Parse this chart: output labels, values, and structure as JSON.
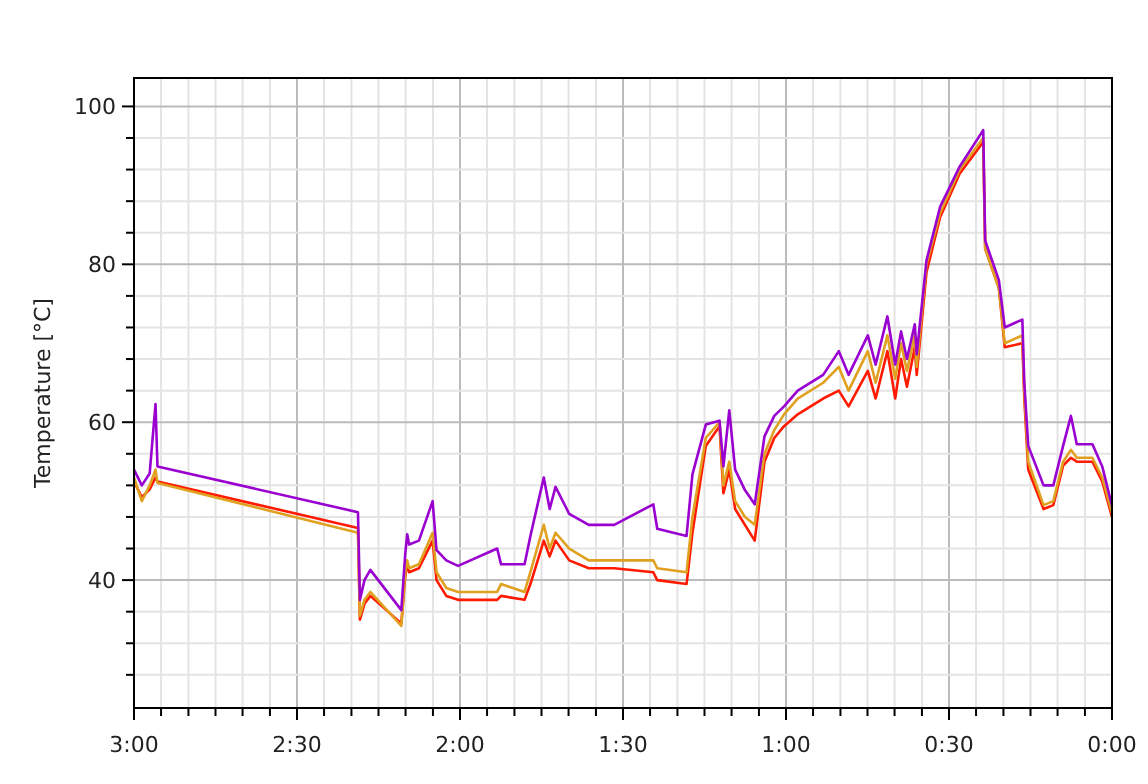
{
  "chart_data": {
    "type": "line",
    "ylabel": "Temperature [°C]",
    "grid": true,
    "line_style": "solid",
    "marker": "none",
    "xlim": [
      3,
      0
    ],
    "ylim": [
      23.8,
      103.6
    ],
    "xticks": [
      {
        "value": 3,
        "label": "3:00"
      },
      {
        "value": 2.917,
        "label": null
      },
      {
        "value": 2.833,
        "label": null
      },
      {
        "value": 2.75,
        "label": null
      },
      {
        "value": 2.667,
        "label": null
      },
      {
        "value": 2.583,
        "label": null
      },
      {
        "value": 2.5,
        "label": "2:30"
      },
      {
        "value": 2.417,
        "label": null
      },
      {
        "value": 2.333,
        "label": null
      },
      {
        "value": 2.25,
        "label": null
      },
      {
        "value": 2.167,
        "label": null
      },
      {
        "value": 2.083,
        "label": null
      },
      {
        "value": 2,
        "label": "2:00"
      },
      {
        "value": 1.917,
        "label": null
      },
      {
        "value": 1.833,
        "label": null
      },
      {
        "value": 1.75,
        "label": null
      },
      {
        "value": 1.667,
        "label": null
      },
      {
        "value": 1.583,
        "label": null
      },
      {
        "value": 1.5,
        "label": "1:30"
      },
      {
        "value": 1.417,
        "label": null
      },
      {
        "value": 1.333,
        "label": null
      },
      {
        "value": 1.25,
        "label": null
      },
      {
        "value": 1.167,
        "label": null
      },
      {
        "value": 1.083,
        "label": null
      },
      {
        "value": 1,
        "label": "1:00"
      },
      {
        "value": 0.917,
        "label": null
      },
      {
        "value": 0.833,
        "label": null
      },
      {
        "value": 0.75,
        "label": null
      },
      {
        "value": 0.667,
        "label": null
      },
      {
        "value": 0.583,
        "label": null
      },
      {
        "value": 0.5,
        "label": "0:30"
      },
      {
        "value": 0.417,
        "label": null
      },
      {
        "value": 0.333,
        "label": null
      },
      {
        "value": 0.25,
        "label": null
      },
      {
        "value": 0.167,
        "label": null
      },
      {
        "value": 0.083,
        "label": null
      },
      {
        "value": 0,
        "label": "0:00"
      }
    ],
    "yticks": [
      {
        "value": 28,
        "label": null
      },
      {
        "value": 32,
        "label": null
      },
      {
        "value": 36,
        "label": null
      },
      40,
      {
        "value": 44,
        "label": null
      },
      {
        "value": 48,
        "label": null
      },
      {
        "value": 52,
        "label": null
      },
      {
        "value": 56,
        "label": null
      },
      60,
      {
        "value": 64,
        "label": null
      },
      {
        "value": 68,
        "label": null
      },
      {
        "value": 72,
        "label": null
      },
      {
        "value": 76,
        "label": null
      },
      80,
      {
        "value": 84,
        "label": null
      },
      {
        "value": 88,
        "label": null
      },
      {
        "value": 92,
        "label": null
      },
      {
        "value": 96,
        "label": null
      },
      100
    ],
    "x": [
      3,
      2.976,
      2.952,
      2.934,
      2.928,
      2.313,
      2.307,
      2.293,
      2.275,
      2.18,
      2.168,
      2.162,
      2.156,
      2.126,
      2.084,
      2.072,
      2.042,
      2.006,
      1.886,
      1.874,
      1.802,
      1.784,
      1.743,
      1.725,
      1.707,
      1.665,
      1.605,
      1.527,
      1.407,
      1.395,
      1.305,
      1.287,
      1.246,
      1.204,
      1.192,
      1.174,
      1.156,
      1.126,
      1.096,
      1.066,
      1.036,
      1.006,
      0.964,
      0.886,
      0.838,
      0.808,
      0.749,
      0.725,
      0.689,
      0.665,
      0.647,
      0.629,
      0.605,
      0.599,
      0.569,
      0.527,
      0.467,
      0.395,
      0.389,
      0.347,
      0.329,
      0.275,
      0.269,
      0.257,
      0.21,
      0.18,
      0.15,
      0.126,
      0.108,
      0.06,
      0.03,
      0
    ],
    "series": [
      {
        "color": "#ff1a00",
        "values": [
          52.5,
          50.5,
          51.5,
          53,
          52.5,
          46.6,
          35,
          37,
          38,
          34.5,
          40.5,
          42,
          41,
          41.5,
          45,
          40,
          38,
          37.5,
          37.5,
          38,
          37.5,
          39.5,
          45,
          43,
          45,
          42.5,
          41.5,
          41.5,
          41,
          40,
          39.5,
          46,
          57,
          59.5,
          51,
          54,
          49,
          47,
          45,
          55,
          58,
          59.5,
          61,
          63,
          64,
          62,
          66.5,
          63,
          69,
          63,
          68,
          64.5,
          69.5,
          66,
          79,
          86,
          91.5,
          95.5,
          82,
          77,
          69.5,
          70,
          63,
          54,
          49,
          49.5,
          54.5,
          55.5,
          55,
          55,
          52.5,
          48
        ]
      },
      {
        "color": "#e0a020",
        "values": [
          53,
          50,
          52,
          54,
          52.3,
          46,
          35.5,
          37.5,
          38.5,
          34.2,
          41,
          42.5,
          41.5,
          42,
          46,
          41,
          39,
          38.5,
          38.5,
          39.5,
          38.5,
          41,
          47,
          44,
          46,
          44,
          42.5,
          42.5,
          42.5,
          41.5,
          41,
          48,
          58,
          60,
          52,
          55,
          50,
          48,
          47,
          56,
          59,
          61,
          63,
          65,
          67,
          64,
          69,
          65,
          71,
          65.5,
          70,
          66.5,
          71,
          67,
          80,
          86.5,
          92,
          96,
          82,
          77,
          70,
          71,
          64,
          55,
          49.5,
          50,
          55,
          56.5,
          55.5,
          55.5,
          53,
          48.5
        ]
      },
      {
        "color": "#9a00d0",
        "values": [
          54,
          52,
          53.5,
          62.3,
          54.4,
          48.6,
          37.5,
          40,
          41.3,
          36.2,
          43.3,
          45.8,
          44.5,
          45,
          50,
          43.8,
          42.5,
          41.8,
          44,
          42,
          42,
          45.6,
          53,
          49,
          51.8,
          48.4,
          47,
          47,
          49.6,
          46.5,
          45.6,
          53.4,
          59.7,
          60.2,
          54.4,
          61.5,
          54,
          51.4,
          49.6,
          58.2,
          60.8,
          62,
          64,
          66,
          69,
          66,
          71,
          67.3,
          73.4,
          67.3,
          71.5,
          68,
          72.4,
          68.6,
          80.5,
          87.3,
          92.4,
          97,
          83,
          78,
          72,
          73,
          65,
          57,
          52,
          52,
          57,
          60.8,
          57.2,
          57.2,
          54.4,
          49.4
        ]
      }
    ]
  }
}
